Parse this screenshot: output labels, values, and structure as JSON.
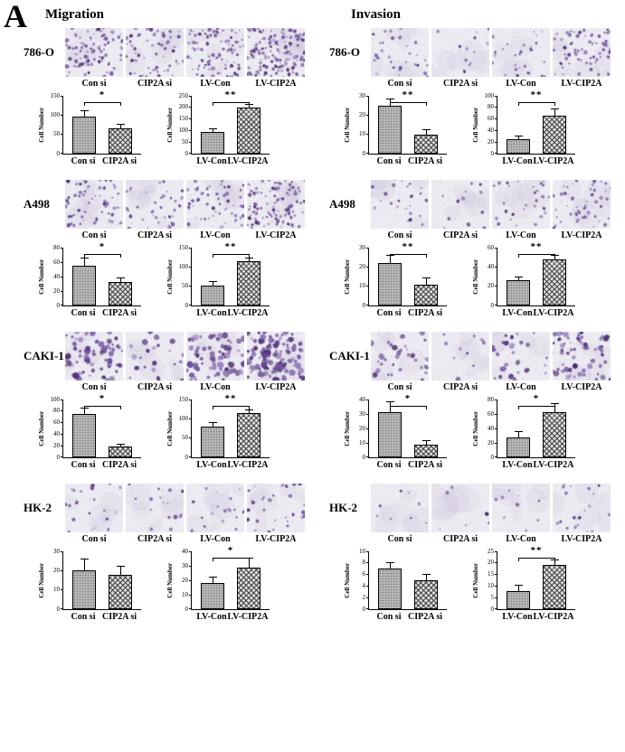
{
  "panel_label": "A",
  "colors": {
    "stain": "#6b4fa1",
    "micrograph_bg": "#edebf2",
    "bar_fill": "#b3b3b3"
  },
  "columns": [
    {
      "title": "Migration",
      "rows": [
        {
          "cell_line": "786-O",
          "image_labels": [
            "Con si",
            "CIP2A si",
            "LV-Con",
            "LV-CIP2A"
          ],
          "image_density": [
            90,
            60,
            90,
            150
          ],
          "dot_size": 1,
          "chart_indices": [
            0,
            1
          ]
        },
        {
          "cell_line": "A498",
          "image_labels": [
            "Con si",
            "CIP2A si",
            "LV-Con",
            "LV-CIP2A"
          ],
          "image_density": [
            60,
            35,
            55,
            110
          ],
          "dot_size": 1,
          "chart_indices": [
            2,
            3
          ]
        },
        {
          "cell_line": "CAKI-1",
          "image_labels": [
            "Con si",
            "CIP2A si",
            "LV-Con",
            "LV-CIP2A"
          ],
          "image_density": [
            70,
            22,
            75,
            110
          ],
          "dot_size": 1.6,
          "chart_indices": [
            4,
            5
          ]
        },
        {
          "cell_line": "HK-2",
          "image_labels": [
            "Con si",
            "CIP2A si",
            "LV-Con",
            "LV-CIP2A"
          ],
          "image_density": [
            22,
            18,
            18,
            30
          ],
          "dot_size": 1,
          "chart_indices": [
            6,
            7
          ]
        }
      ]
    },
    {
      "title": "Invasion",
      "rows": [
        {
          "cell_line": "786-O",
          "image_labels": [
            "Con si",
            "CIP2A si",
            "LV-Con",
            "LV-CIP2A"
          ],
          "image_density": [
            30,
            12,
            28,
            70
          ],
          "dot_size": 1,
          "chart_indices": [
            8,
            9
          ]
        },
        {
          "cell_line": "A498",
          "image_labels": [
            "Con si",
            "CIP2A si",
            "LV-Con",
            "LV-CIP2A"
          ],
          "image_density": [
            25,
            12,
            28,
            50
          ],
          "dot_size": 1,
          "chart_indices": [
            10,
            11
          ]
        },
        {
          "cell_line": "CAKI-1",
          "image_labels": [
            "Con si",
            "CIP2A si",
            "LV-Con",
            "LV-CIP2A"
          ],
          "image_density": [
            32,
            10,
            28,
            62
          ],
          "dot_size": 1.4,
          "chart_indices": [
            12,
            13
          ]
        },
        {
          "cell_line": "HK-2",
          "image_labels": [
            "Con si",
            "CIP2A si",
            "LV-Con",
            "LV-CIP2A"
          ],
          "image_density": [
            8,
            6,
            9,
            20
          ],
          "dot_size": 1,
          "chart_indices": [
            14,
            15
          ]
        }
      ]
    }
  ],
  "chart_data": [
    {
      "assay": "Migration",
      "cell_line": "786-O",
      "type": "bar",
      "categories": [
        "Con si",
        "CIP2A si"
      ],
      "values": [
        95,
        65
      ],
      "errors": [
        15,
        10
      ],
      "ylabel": "Cell Number",
      "ylim": [
        0,
        150
      ],
      "yticks": [
        0,
        50,
        100,
        150
      ],
      "sig": "*"
    },
    {
      "assay": "Migration",
      "cell_line": "786-O",
      "type": "bar",
      "categories": [
        "LV-Con",
        "LV-CIP2A"
      ],
      "values": [
        95,
        200
      ],
      "errors": [
        10,
        10
      ],
      "ylabel": "Cell Number",
      "ylim": [
        0,
        250
      ],
      "yticks": [
        0,
        50,
        100,
        150,
        200,
        250
      ],
      "sig": "**"
    },
    {
      "assay": "Migration",
      "cell_line": "A498",
      "type": "bar",
      "categories": [
        "Con si",
        "CIP2A si"
      ],
      "values": [
        55,
        32
      ],
      "errors": [
        10,
        5
      ],
      "ylabel": "Cell Number",
      "ylim": [
        0,
        80
      ],
      "yticks": [
        0,
        20,
        40,
        60,
        80
      ],
      "sig": "*"
    },
    {
      "assay": "Migration",
      "cell_line": "A498",
      "type": "bar",
      "categories": [
        "LV-Con",
        "LV-CIP2A"
      ],
      "values": [
        52,
        115
      ],
      "errors": [
        8,
        6
      ],
      "ylabel": "Cell Number",
      "ylim": [
        0,
        150
      ],
      "yticks": [
        0,
        50,
        100,
        150
      ],
      "sig": "**"
    },
    {
      "assay": "Migration",
      "cell_line": "CAKI-1",
      "type": "bar",
      "categories": [
        "Con si",
        "CIP2A si"
      ],
      "values": [
        75,
        18
      ],
      "errors": [
        10,
        4
      ],
      "ylabel": "Cell Number",
      "ylim": [
        0,
        100
      ],
      "yticks": [
        0,
        20,
        40,
        60,
        80,
        100
      ],
      "sig": "*"
    },
    {
      "assay": "Migration",
      "cell_line": "CAKI-1",
      "type": "bar",
      "categories": [
        "LV-Con",
        "LV-CIP2A"
      ],
      "values": [
        80,
        115
      ],
      "errors": [
        8,
        8
      ],
      "ylabel": "Cell Number",
      "ylim": [
        0,
        150
      ],
      "yticks": [
        0,
        50,
        100,
        150
      ],
      "sig": "**"
    },
    {
      "assay": "Migration",
      "cell_line": "HK-2",
      "type": "bar",
      "categories": [
        "Con si",
        "CIP2A si"
      ],
      "values": [
        20,
        18
      ],
      "errors": [
        6,
        4
      ],
      "ylabel": "Cell Number",
      "ylim": [
        0,
        30
      ],
      "yticks": [
        0,
        10,
        20,
        30
      ],
      "sig": null
    },
    {
      "assay": "Migration",
      "cell_line": "HK-2",
      "type": "bar",
      "categories": [
        "LV-Con",
        "LV-CIP2A"
      ],
      "values": [
        18,
        29
      ],
      "errors": [
        4,
        6
      ],
      "ylabel": "Cell Number",
      "ylim": [
        0,
        40
      ],
      "yticks": [
        0,
        10,
        20,
        30,
        40
      ],
      "sig": "*"
    },
    {
      "assay": "Invasion",
      "cell_line": "786-O",
      "type": "bar",
      "categories": [
        "Con si",
        "CIP2A si"
      ],
      "values": [
        25,
        10
      ],
      "errors": [
        3,
        2
      ],
      "ylabel": "Cell Number",
      "ylim": [
        0,
        30
      ],
      "yticks": [
        0,
        10,
        20,
        30
      ],
      "sig": "**"
    },
    {
      "assay": "Invasion",
      "cell_line": "786-O",
      "type": "bar",
      "categories": [
        "LV-Con",
        "LV-CIP2A"
      ],
      "values": [
        25,
        65
      ],
      "errors": [
        4,
        12
      ],
      "ylabel": "Cell Number",
      "ylim": [
        0,
        100
      ],
      "yticks": [
        0,
        20,
        40,
        60,
        80,
        100
      ],
      "sig": "**"
    },
    {
      "assay": "Invasion",
      "cell_line": "A498",
      "type": "bar",
      "categories": [
        "Con si",
        "CIP2A si"
      ],
      "values": [
        22,
        11
      ],
      "errors": [
        4,
        3
      ],
      "ylabel": "Cell Number",
      "ylim": [
        0,
        30
      ],
      "yticks": [
        0,
        10,
        20,
        30
      ],
      "sig": "**"
    },
    {
      "assay": "Invasion",
      "cell_line": "A498",
      "type": "bar",
      "categories": [
        "LV-Con",
        "LV-CIP2A"
      ],
      "values": [
        26,
        48
      ],
      "errors": [
        3,
        4
      ],
      "ylabel": "Cell Number",
      "ylim": [
        0,
        60
      ],
      "yticks": [
        0,
        20,
        40,
        60
      ],
      "sig": "**"
    },
    {
      "assay": "Invasion",
      "cell_line": "CAKI-1",
      "type": "bar",
      "categories": [
        "Con si",
        "CIP2A si"
      ],
      "values": [
        31,
        9
      ],
      "errors": [
        7,
        2
      ],
      "ylabel": "Cell Number",
      "ylim": [
        0,
        40
      ],
      "yticks": [
        0,
        10,
        20,
        30,
        40
      ],
      "sig": "*"
    },
    {
      "assay": "Invasion",
      "cell_line": "CAKI-1",
      "type": "bar",
      "categories": [
        "LV-Con",
        "LV-CIP2A"
      ],
      "values": [
        27,
        62
      ],
      "errors": [
        8,
        12
      ],
      "ylabel": "Cell Number",
      "ylim": [
        0,
        80
      ],
      "yticks": [
        0,
        20,
        40,
        60,
        80
      ],
      "sig": "*"
    },
    {
      "assay": "Invasion",
      "cell_line": "HK-2",
      "type": "bar",
      "categories": [
        "Con si",
        "CIP2A si"
      ],
      "values": [
        7,
        5
      ],
      "errors": [
        1,
        1
      ],
      "ylabel": "Cell Number",
      "ylim": [
        0,
        10
      ],
      "yticks": [
        0,
        2,
        4,
        6,
        8,
        10
      ],
      "sig": null
    },
    {
      "assay": "Invasion",
      "cell_line": "HK-2",
      "type": "bar",
      "categories": [
        "LV-Con",
        "LV-CIP2A"
      ],
      "values": [
        8,
        19
      ],
      "errors": [
        2,
        2
      ],
      "ylabel": "Cell Number",
      "ylim": [
        0,
        25
      ],
      "yticks": [
        0,
        5,
        10,
        15,
        20,
        25
      ],
      "sig": "**"
    }
  ]
}
